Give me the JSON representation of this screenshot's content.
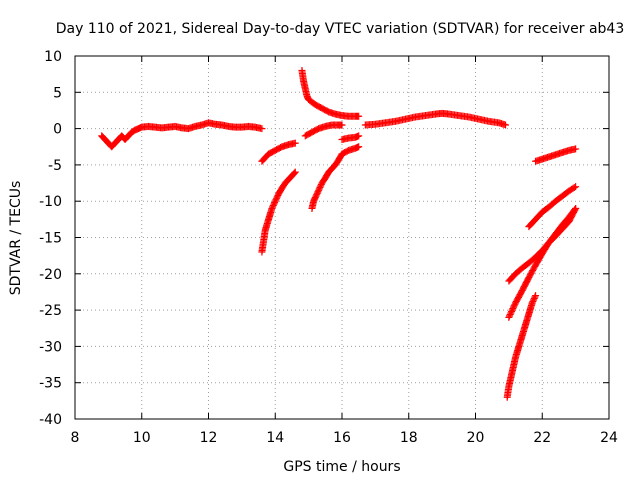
{
  "chart_data": {
    "type": "scatter",
    "title": "Day 110 of 2021, Sidereal Day-to-day VTEC variation (SDTVAR) for receiver ab43",
    "xlabel": "GPS time / hours",
    "ylabel": "SDTVAR / TECUs",
    "xlim": [
      8,
      24
    ],
    "ylim": [
      -40,
      10
    ],
    "xticks": [
      "8",
      "10",
      "12",
      "14",
      "16",
      "18",
      "20",
      "22",
      "24"
    ],
    "yticks": [
      "10",
      "5",
      "0",
      "-5",
      "-10",
      "-15",
      "-20",
      "-25",
      "-30",
      "-35",
      "-40"
    ],
    "grid": true,
    "marker": "plus",
    "color": "#ff0000",
    "series": [
      {
        "x": [
          8.8,
          8.9,
          9.0,
          9.1,
          9.2,
          9.3,
          9.4,
          9.5,
          9.6,
          9.7,
          9.8,
          9.9,
          10.0,
          10.2,
          10.4,
          10.6,
          10.8,
          11.0,
          11.2,
          11.4,
          11.6,
          11.8,
          12.0,
          12.2,
          12.4,
          12.6,
          12.8,
          13.0,
          13.2,
          13.4,
          13.6
        ],
        "y": [
          -1.0,
          -1.5,
          -2.0,
          -2.5,
          -2.0,
          -1.5,
          -1.0,
          -1.5,
          -1.0,
          -0.5,
          -0.2,
          0.0,
          0.2,
          0.3,
          0.2,
          0.1,
          0.2,
          0.3,
          0.1,
          0.0,
          0.3,
          0.5,
          0.8,
          0.6,
          0.5,
          0.3,
          0.2,
          0.2,
          0.3,
          0.2,
          0.0
        ]
      },
      {
        "x": [
          13.6,
          13.8,
          14.0,
          14.2,
          14.4,
          14.6
        ],
        "y": [
          -4.5,
          -3.5,
          -3.0,
          -2.5,
          -2.2,
          -2.0
        ]
      },
      {
        "x": [
          13.6,
          13.65,
          13.7,
          13.8,
          13.9,
          14.0,
          14.1,
          14.2,
          14.3,
          14.4,
          14.5,
          14.6
        ],
        "y": [
          -17.0,
          -15.5,
          -14.0,
          -12.5,
          -11.0,
          -10.0,
          -9.0,
          -8.2,
          -7.5,
          -7.0,
          -6.5,
          -6.0
        ]
      },
      {
        "x": [
          14.8,
          14.85,
          14.9,
          14.95,
          15.0,
          15.2,
          15.4,
          15.6,
          15.8,
          16.0,
          16.2,
          16.4,
          16.5
        ],
        "y": [
          8.0,
          6.5,
          5.5,
          4.5,
          4.0,
          3.3,
          2.8,
          2.3,
          2.0,
          1.8,
          1.7,
          1.7,
          1.7
        ]
      },
      {
        "x": [
          14.9,
          15.1,
          15.3,
          15.5,
          15.7,
          15.9,
          16.0
        ],
        "y": [
          -1.0,
          -0.5,
          0.0,
          0.3,
          0.5,
          0.5,
          0.5
        ]
      },
      {
        "x": [
          16.0,
          16.2,
          16.4,
          16.5
        ],
        "y": [
          -1.5,
          -1.3,
          -1.2,
          -1.0
        ]
      },
      {
        "x": [
          16.0,
          16.2,
          16.4,
          16.5
        ],
        "y": [
          -3.5,
          -3.0,
          -2.7,
          -2.5
        ]
      },
      {
        "x": [
          15.1,
          15.15,
          15.2,
          15.3,
          15.4,
          15.5,
          15.6,
          15.7,
          15.8,
          15.9,
          16.0
        ],
        "y": [
          -11.0,
          -10.0,
          -9.5,
          -8.5,
          -7.5,
          -6.8,
          -6.0,
          -5.5,
          -5.0,
          -4.3,
          -3.5
        ]
      },
      {
        "x": [
          16.7,
          17.0,
          17.3,
          17.6,
          17.9,
          18.2,
          18.5,
          18.8,
          19.0,
          19.2,
          19.5,
          19.8,
          20.1,
          20.4,
          20.7,
          20.9
        ],
        "y": [
          0.5,
          0.6,
          0.8,
          1.0,
          1.3,
          1.6,
          1.8,
          2.0,
          2.1,
          2.0,
          1.8,
          1.6,
          1.3,
          1.0,
          0.8,
          0.5
        ]
      },
      {
        "x": [
          21.8,
          22.0,
          22.2,
          22.4,
          22.6,
          22.8,
          23.0
        ],
        "y": [
          -4.5,
          -4.2,
          -3.9,
          -3.6,
          -3.3,
          -3.0,
          -2.8
        ]
      },
      {
        "x": [
          21.6,
          21.8,
          22.0,
          22.2,
          22.4,
          22.6,
          22.8,
          23.0
        ],
        "y": [
          -13.5,
          -12.5,
          -11.5,
          -10.8,
          -10.0,
          -9.3,
          -8.6,
          -8.0
        ]
      },
      {
        "x": [
          21.0,
          21.2,
          21.4,
          21.6,
          21.8,
          22.0,
          22.2,
          22.4,
          22.6,
          22.8,
          23.0
        ],
        "y": [
          -21.0,
          -20.0,
          -19.2,
          -18.5,
          -17.7,
          -16.8,
          -15.7,
          -14.8,
          -13.8,
          -12.8,
          -11.0
        ]
      },
      {
        "x": [
          21.0,
          21.2,
          21.4,
          21.6,
          21.8,
          22.0,
          22.2,
          22.4,
          22.6,
          22.8,
          23.0
        ],
        "y": [
          -26.0,
          -24.0,
          -22.3,
          -20.5,
          -18.8,
          -17.2,
          -15.7,
          -14.5,
          -13.3,
          -12.2,
          -11.0
        ]
      },
      {
        "x": [
          20.95,
          21.0,
          21.1,
          21.2,
          21.3,
          21.4,
          21.5,
          21.6,
          21.7,
          21.8
        ],
        "y": [
          -37.0,
          -35.5,
          -33.5,
          -31.5,
          -30.0,
          -28.5,
          -27.0,
          -25.5,
          -24.0,
          -23.0
        ]
      }
    ]
  }
}
